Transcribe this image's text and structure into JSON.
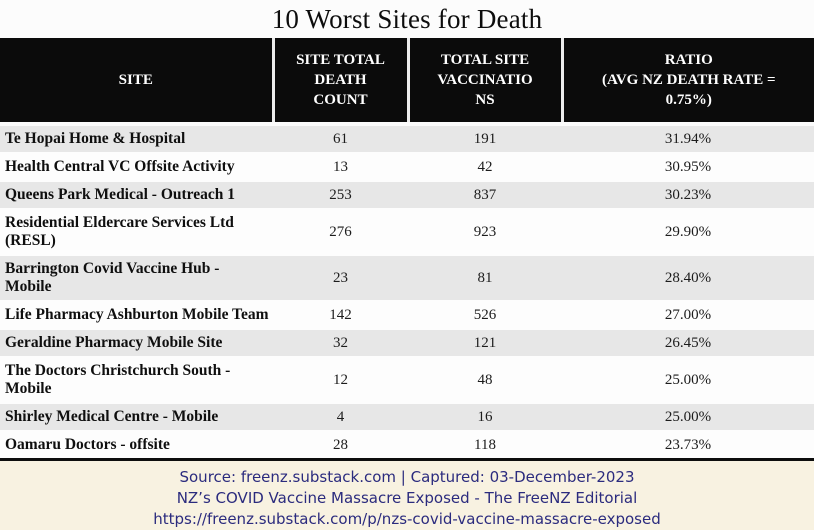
{
  "chart_data": {
    "type": "table",
    "title": "10 Worst Sites for Death",
    "columns": [
      "SITE",
      "SITE TOTAL DEATH COUNT",
      "TOTAL SITE VACCINATIONS",
      "RATIO (AVG NZ DEATH RATE = 0.75%)"
    ],
    "rows": [
      [
        "Te Hopai Home & Hospital",
        "61",
        "191",
        "31.94%"
      ],
      [
        "Health Central VC Offsite Activity",
        "13",
        "42",
        "30.95%"
      ],
      [
        "Queens Park Medical - Outreach 1",
        "253",
        "837",
        "30.23%"
      ],
      [
        "Residential Eldercare Services Ltd (RESL)",
        "276",
        "923",
        "29.90%"
      ],
      [
        "Barrington Covid Vaccine Hub - Mobile",
        "23",
        "81",
        "28.40%"
      ],
      [
        "Life Pharmacy Ashburton Mobile Team",
        "142",
        "526",
        "27.00%"
      ],
      [
        "Geraldine Pharmacy Mobile Site",
        "32",
        "121",
        "26.45%"
      ],
      [
        "The Doctors Christchurch South - Mobile",
        "12",
        "48",
        "25.00%"
      ],
      [
        "Shirley Medical Centre - Mobile",
        "4",
        "16",
        "25.00%"
      ],
      [
        "Oamaru Doctors - offsite",
        "28",
        "118",
        "23.73%"
      ]
    ],
    "layout_hints": {
      "header_style": "black band, white bold serif text",
      "row_striping": "alternating gray/white starting gray"
    }
  },
  "table_display": {
    "columns": [
      {
        "lines": [
          "SITE"
        ]
      },
      {
        "lines": [
          "SITE TOTAL",
          "DEATH",
          "COUNT"
        ]
      },
      {
        "lines": [
          "TOTAL SITE",
          "VACCINATIO",
          "NS"
        ]
      },
      {
        "lines": [
          "RATIO",
          "(AVG NZ DEATH RATE =",
          "0.75%)"
        ]
      }
    ]
  },
  "footer": {
    "lines": [
      "Source: freenz.substack.com | Captured: 03-December-2023",
      "NZ’s COVID Vaccine Massacre Exposed - The FreeNZ Editorial",
      "https://freenz.substack.com/p/nzs-covid-vaccine-massacre-exposed"
    ]
  },
  "colors": {
    "header_bg": "#0b0b0b",
    "header_text": "#ffffff",
    "row_alt_gray": "#e7e7e7",
    "row_white": "#fdfdfd",
    "table_bottom_border": "#0d0d0d",
    "footer_bg": "#f8f2e1",
    "footer_text": "#2b2b7e",
    "title_text": "#0d0d0d"
  }
}
